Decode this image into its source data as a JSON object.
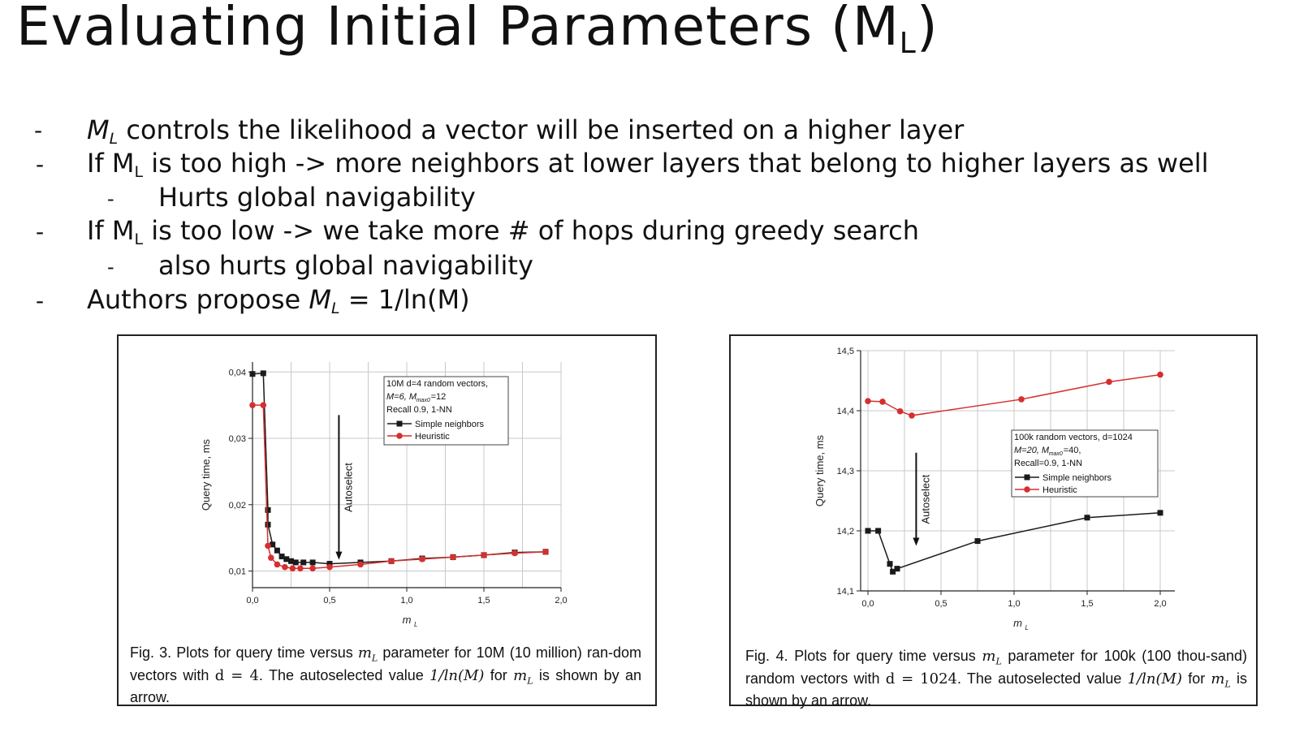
{
  "slide": {
    "title": "Evaluating Initial Parameters (M",
    "title_sub": "L",
    "title_close": ")",
    "bullets": [
      {
        "dash": "-",
        "pre": "",
        "var": "M",
        "sub": "L",
        "text": " controls the likelihood a vector will be inserted on a higher layer"
      },
      {
        "dash": "-",
        "pre": "If ",
        "var": "M",
        "sub": "L",
        "text": " is too high -> more neighbors at lower layers that belong to higher layers as well"
      },
      {
        "dash": "-",
        "pre": "",
        "var": "",
        "sub": "",
        "text": "Hurts global navigability"
      },
      {
        "dash": "-",
        "pre": "If ",
        "var": "M",
        "sub": "L",
        "text": " is too low -> we take more # of hops during greedy search"
      },
      {
        "dash": "-",
        "pre": "",
        "var": "",
        "sub": "",
        "text": "also hurts global navigability"
      },
      {
        "dash": "-",
        "pre": "Authors propose ",
        "var": "M",
        "sub": "L",
        "text": " = 1/ln(M)"
      }
    ]
  },
  "figures": {
    "fig3": {
      "caption": "Fig. 3. Plots for query time versus mL parameter for 10M (10 million) random vectors with d = 4. The autoselected value 1/ln(M) for mL is shown by an arrow.",
      "caption_parts": [
        "Fig. 3. Plots for query time versus ",
        "m",
        "L",
        " parameter for 10M (10 million) ran-dom vectors with ",
        "d = 4",
        ". The autoselected value ",
        "1/ln(M)",
        " for ",
        "m",
        "L",
        " is shown by an arrow."
      ]
    },
    "fig4": {
      "caption": "Fig. 4. Plots for query time versus mL parameter for 100k (100 thousand) random vectors with d = 1024. The autoselected value 1/ln(M) for mL is shown by an arrow.",
      "caption_parts": [
        "Fig. 4. Plots for query time versus ",
        "m",
        "L",
        " parameter for 100k (100 thou-sand) random vectors with ",
        "d = 1024",
        ". The autoselected value ",
        "1/ln(M)",
        " for ",
        "m",
        "L",
        " is shown by an arrow."
      ]
    }
  },
  "chart_data": [
    {
      "type": "line",
      "xlabel": "m",
      "xlabel_sub": "L",
      "ylabel": "Query time, ms",
      "xlim": [
        0,
        2
      ],
      "ylim": [
        0.0075,
        0.0415
      ],
      "xticks": [
        "0,0",
        "0,5",
        "1,0",
        "1,5",
        "2,0"
      ],
      "xtick_values": [
        0,
        0.5,
        1.0,
        1.5,
        2.0
      ],
      "yticks": [
        "0,01",
        "0,02",
        "0,03",
        "0,04"
      ],
      "ytick_values": [
        0.01,
        0.02,
        0.03,
        0.04
      ],
      "grid": true,
      "legend_lines": [
        "10M d=4 random vectors,",
        "M=6, M",
        "max0",
        "=12",
        "Recall 0.9, 1-NN"
      ],
      "legend_placement": "top-center",
      "annotation": {
        "text": "Autoselect",
        "x": 0.56
      },
      "series": [
        {
          "name": "Simple neighbors",
          "color": "#1a1a1a",
          "marker": "square",
          "x": [
            0.0,
            0.07,
            0.1,
            0.1,
            0.13,
            0.16,
            0.19,
            0.22,
            0.25,
            0.28,
            0.33,
            0.39,
            0.5,
            0.7,
            0.9,
            1.1,
            1.3,
            1.5,
            1.7,
            1.9
          ],
          "y": [
            0.0397,
            0.0398,
            0.0192,
            0.017,
            0.014,
            0.0131,
            0.0122,
            0.0118,
            0.0115,
            0.0113,
            0.0113,
            0.0113,
            0.0111,
            0.0113,
            0.0115,
            0.0119,
            0.0121,
            0.0124,
            0.0128,
            0.0129
          ]
        },
        {
          "name": "Heuristic",
          "color": "#d62f2f",
          "marker": "circle",
          "x": [
            0.0,
            0.07,
            0.1,
            0.12,
            0.16,
            0.21,
            0.26,
            0.31,
            0.39,
            0.5,
            0.7,
            0.9,
            1.1,
            1.3,
            1.5,
            1.7,
            1.9
          ],
          "y": [
            0.035,
            0.035,
            0.0138,
            0.012,
            0.011,
            0.0106,
            0.0104,
            0.0104,
            0.0104,
            0.0106,
            0.011,
            0.0115,
            0.0118,
            0.0121,
            0.0124,
            0.0127,
            0.0129
          ]
        }
      ]
    },
    {
      "type": "line",
      "xlabel": "m",
      "xlabel_sub": "L",
      "ylabel": "Query time, ms",
      "xlim": [
        -0.05,
        2.1
      ],
      "ylim": [
        14.1,
        14.5
      ],
      "xticks": [
        "0,0",
        "0,5",
        "1,0",
        "1,5",
        "2,0"
      ],
      "xtick_values": [
        0,
        0.5,
        1.0,
        1.5,
        2.0
      ],
      "yticks": [
        "14,1",
        "14,2",
        "14,3",
        "14,4",
        "14,5"
      ],
      "ytick_values": [
        14.1,
        14.2,
        14.3,
        14.4,
        14.5
      ],
      "grid": true,
      "legend_lines": [
        "100k random vectors, d=1024",
        "M=20, M",
        "max0",
        "=40,",
        "Recall=0.9, 1-NN"
      ],
      "legend_placement": "right",
      "annotation": {
        "text": "Autoselect",
        "x": 0.33
      },
      "series": [
        {
          "name": "Simple neighbors",
          "color": "#1a1a1a",
          "marker": "square",
          "x": [
            0.0,
            0.07,
            0.15,
            0.17,
            0.2,
            0.75,
            1.5,
            2.0
          ],
          "y": [
            14.2,
            14.2,
            14.145,
            14.132,
            14.137,
            14.183,
            14.222,
            14.23
          ]
        },
        {
          "name": "Heuristic",
          "color": "#d62f2f",
          "marker": "circle",
          "x": [
            0.0,
            0.1,
            0.22,
            0.3,
            1.05,
            1.65,
            2.0
          ],
          "y": [
            14.416,
            14.415,
            14.399,
            14.392,
            14.419,
            14.448,
            14.46
          ]
        }
      ]
    }
  ]
}
